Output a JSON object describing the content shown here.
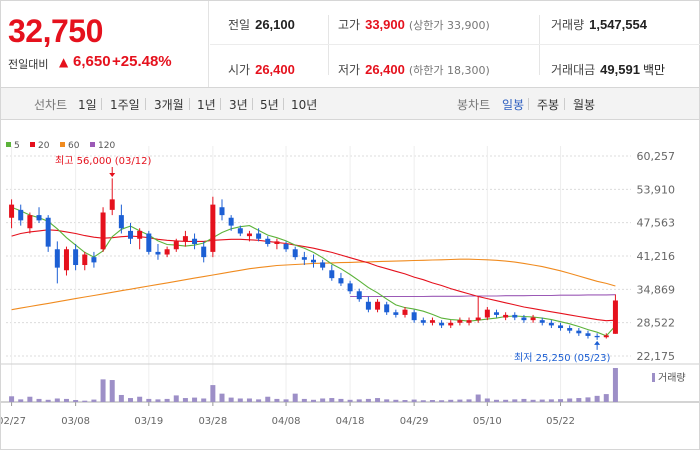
{
  "quote": {
    "price": "32,750",
    "change_label": "전일대비",
    "change_arrow": "▲",
    "change_value": "6,650",
    "change_rate": "+25.48%",
    "prev_close": {
      "label": "전일",
      "value": "26,100"
    },
    "open": {
      "label": "시가",
      "value": "26,400"
    },
    "high": {
      "label": "고가",
      "value": "33,900",
      "sub": "(상한가 33,900)"
    },
    "low": {
      "label": "저가",
      "value": "26,400",
      "sub": "(하한가 18,300)"
    },
    "volume": {
      "label": "거래량",
      "value": "1,547,554"
    },
    "trade_amount": {
      "label": "거래대금",
      "value": "49,591",
      "unit": "백만"
    }
  },
  "toolbar": {
    "line_label": "선차트",
    "line_periods": [
      "1일",
      "1주일",
      "3개월",
      "1년",
      "3년",
      "5년",
      "10년"
    ],
    "candle_label": "봉차트",
    "candle_periods": [
      "일봉",
      "주봉",
      "월봉"
    ],
    "active_candle": "일봉"
  },
  "colors": {
    "up": "#e5111d",
    "down": "#1c5fd4",
    "ma5": "#5cb33a",
    "ma20": "#e5111d",
    "ma60": "#f08b1f",
    "ma120": "#9b59b6",
    "volume": "#9d8fc7",
    "grid": "#dcdcdc"
  },
  "chart_data": {
    "type": "candlestick",
    "legend": [
      {
        "name": "5",
        "color": "#5cb33a"
      },
      {
        "name": "20",
        "color": "#e5111d"
      },
      {
        "name": "60",
        "color": "#f08b1f"
      },
      {
        "name": "120",
        "color": "#9b59b6"
      }
    ],
    "y_ticks": [
      "60,257",
      "53,910",
      "47,563",
      "41,216",
      "34,869",
      "28,522",
      "22,175"
    ],
    "ylim": [
      22175,
      60257
    ],
    "x_ticks": [
      "02/27",
      "03/08",
      "03/19",
      "03/28",
      "04/08",
      "04/18",
      "04/29",
      "05/10",
      "05/22"
    ],
    "high_annotation": "최고 56,000 (03/12)",
    "low_annotation": "최저 25,250 (05/23)",
    "volume_label": "거래량",
    "candles": [
      {
        "o": 48500,
        "h": 52000,
        "l": 46500,
        "c": 51000
      },
      {
        "o": 50000,
        "h": 51000,
        "l": 47000,
        "c": 48000
      },
      {
        "o": 46500,
        "h": 49500,
        "l": 45500,
        "c": 49000
      },
      {
        "o": 49000,
        "h": 50500,
        "l": 47500,
        "c": 48000
      },
      {
        "o": 48500,
        "h": 49000,
        "l": 42000,
        "c": 43000
      },
      {
        "o": 42500,
        "h": 44000,
        "l": 36000,
        "c": 39000
      },
      {
        "o": 38500,
        "h": 43000,
        "l": 37500,
        "c": 42500
      },
      {
        "o": 42500,
        "h": 43500,
        "l": 38500,
        "c": 39500
      },
      {
        "o": 39500,
        "h": 42000,
        "l": 38500,
        "c": 41500
      },
      {
        "o": 41000,
        "h": 42000,
        "l": 39000,
        "c": 40000
      },
      {
        "o": 42500,
        "h": 50500,
        "l": 42000,
        "c": 49500
      },
      {
        "o": 50000,
        "h": 56000,
        "l": 49000,
        "c": 52000
      },
      {
        "o": 49000,
        "h": 51000,
        "l": 45500,
        "c": 46500
      },
      {
        "o": 46000,
        "h": 47500,
        "l": 43500,
        "c": 44500
      },
      {
        "o": 44500,
        "h": 46500,
        "l": 42500,
        "c": 46000
      },
      {
        "o": 45500,
        "h": 46000,
        "l": 41500,
        "c": 42000
      },
      {
        "o": 42000,
        "h": 43500,
        "l": 40500,
        "c": 41500
      },
      {
        "o": 41500,
        "h": 43000,
        "l": 41000,
        "c": 42500
      },
      {
        "o": 42500,
        "h": 44500,
        "l": 42000,
        "c": 44000
      },
      {
        "o": 44000,
        "h": 46000,
        "l": 43000,
        "c": 45000
      },
      {
        "o": 44500,
        "h": 45500,
        "l": 42500,
        "c": 43500
      },
      {
        "o": 43000,
        "h": 44000,
        "l": 40000,
        "c": 41000
      },
      {
        "o": 42000,
        "h": 52500,
        "l": 41000,
        "c": 51000
      },
      {
        "o": 50500,
        "h": 52000,
        "l": 48000,
        "c": 49000
      },
      {
        "o": 48500,
        "h": 49000,
        "l": 46000,
        "c": 47000
      },
      {
        "o": 46500,
        "h": 47000,
        "l": 45000,
        "c": 45500
      },
      {
        "o": 45000,
        "h": 46000,
        "l": 44000,
        "c": 45500
      },
      {
        "o": 45500,
        "h": 46500,
        "l": 44000,
        "c": 44500
      },
      {
        "o": 44500,
        "h": 45000,
        "l": 43000,
        "c": 43500
      },
      {
        "o": 43500,
        "h": 44500,
        "l": 42500,
        "c": 44000
      },
      {
        "o": 43500,
        "h": 44000,
        "l": 42000,
        "c": 42500
      },
      {
        "o": 42500,
        "h": 43000,
        "l": 40500,
        "c": 41000
      },
      {
        "o": 41000,
        "h": 42000,
        "l": 39500,
        "c": 40500
      },
      {
        "o": 40500,
        "h": 41500,
        "l": 39000,
        "c": 40000
      },
      {
        "o": 40000,
        "h": 40500,
        "l": 38500,
        "c": 39000
      },
      {
        "o": 38500,
        "h": 39500,
        "l": 36500,
        "c": 37000
      },
      {
        "o": 37000,
        "h": 38000,
        "l": 35500,
        "c": 36000
      },
      {
        "o": 36000,
        "h": 36500,
        "l": 34000,
        "c": 34500
      },
      {
        "o": 34500,
        "h": 35000,
        "l": 32500,
        "c": 33000
      },
      {
        "o": 32500,
        "h": 33500,
        "l": 30500,
        "c": 31000
      },
      {
        "o": 31000,
        "h": 33000,
        "l": 30500,
        "c": 32500
      },
      {
        "o": 32000,
        "h": 32500,
        "l": 30000,
        "c": 30500
      },
      {
        "o": 30500,
        "h": 31000,
        "l": 29500,
        "c": 30000
      },
      {
        "o": 30000,
        "h": 31500,
        "l": 29500,
        "c": 31000
      },
      {
        "o": 30500,
        "h": 31000,
        "l": 28500,
        "c": 29000
      },
      {
        "o": 29000,
        "h": 29500,
        "l": 28000,
        "c": 28500
      },
      {
        "o": 28500,
        "h": 29500,
        "l": 28000,
        "c": 29000
      },
      {
        "o": 28500,
        "h": 29000,
        "l": 27500,
        "c": 28000
      },
      {
        "o": 28000,
        "h": 29000,
        "l": 27500,
        "c": 28500
      },
      {
        "o": 28500,
        "h": 29500,
        "l": 28000,
        "c": 29000
      },
      {
        "o": 28500,
        "h": 29500,
        "l": 28000,
        "c": 29000
      },
      {
        "o": 29000,
        "h": 33500,
        "l": 28500,
        "c": 29500
      },
      {
        "o": 29500,
        "h": 31500,
        "l": 29000,
        "c": 31000
      },
      {
        "o": 30500,
        "h": 31000,
        "l": 29500,
        "c": 30000
      },
      {
        "o": 29500,
        "h": 30500,
        "l": 29000,
        "c": 30000
      },
      {
        "o": 30000,
        "h": 30500,
        "l": 29000,
        "c": 29500
      },
      {
        "o": 29500,
        "h": 30000,
        "l": 28500,
        "c": 29000
      },
      {
        "o": 29000,
        "h": 30000,
        "l": 28500,
        "c": 29500
      },
      {
        "o": 29000,
        "h": 29500,
        "l": 28000,
        "c": 28500
      },
      {
        "o": 28500,
        "h": 29000,
        "l": 27500,
        "c": 28000
      },
      {
        "o": 28000,
        "h": 28500,
        "l": 27000,
        "c": 27500
      },
      {
        "o": 27500,
        "h": 28000,
        "l": 26500,
        "c": 27000
      },
      {
        "o": 27000,
        "h": 27500,
        "l": 26000,
        "c": 26500
      },
      {
        "o": 26500,
        "h": 27000,
        "l": 25500,
        "c": 26000
      },
      {
        "o": 26000,
        "h": 26500,
        "l": 25250,
        "c": 25750
      },
      {
        "o": 25750,
        "h": 26500,
        "l": 25500,
        "c": 26100
      },
      {
        "o": 26400,
        "h": 33900,
        "l": 26400,
        "c": 32750
      }
    ],
    "volumes": [
      260,
      120,
      240,
      140,
      100,
      160,
      140,
      90,
      60,
      110,
      1030,
      1000,
      320,
      180,
      240,
      140,
      120,
      140,
      300,
      180,
      200,
      160,
      770,
      380,
      200,
      160,
      160,
      120,
      240,
      140,
      120,
      380,
      140,
      100,
      160,
      180,
      140,
      100,
      120,
      140,
      180,
      120,
      100,
      90,
      110,
      80,
      90,
      80,
      100,
      110,
      120,
      340,
      160,
      100,
      100,
      120,
      140,
      100,
      110,
      120,
      130,
      160,
      180,
      210,
      280,
      360,
      1547.5
    ],
    "ma5": [
      50500,
      49800,
      49000,
      48500,
      47800,
      46400,
      44700,
      43300,
      41900,
      41000,
      42200,
      44900,
      46300,
      46900,
      46000,
      45200,
      44100,
      43400,
      43300,
      43100,
      43300,
      43700,
      44700,
      45700,
      46400,
      46800,
      47000,
      46100,
      45200,
      44700,
      44100,
      43300,
      42700,
      41900,
      40900,
      39700,
      38800,
      37700,
      36500,
      35200,
      34200,
      33000,
      31900,
      31400,
      31100,
      30700,
      30100,
      29400,
      29100,
      29000,
      28800,
      29000,
      29200,
      29400,
      29700,
      29800,
      29700,
      29600,
      29400,
      29100,
      28700,
      28300,
      27800,
      27200,
      26700,
      26000,
      27900
    ],
    "ma20": [
      45000,
      45500,
      45800,
      46000,
      46200,
      46100,
      45800,
      45500,
      45100,
      44800,
      44600,
      44700,
      44900,
      45000,
      44900,
      44700,
      44400,
      44200,
      44100,
      44000,
      44000,
      44000,
      44200,
      44300,
      44400,
      44400,
      44300,
      44200,
      44000,
      43800,
      43600,
      43300,
      43000,
      42700,
      42300,
      41900,
      41400,
      40900,
      40400,
      39900,
      39300,
      38800,
      38300,
      37800,
      37200,
      36700,
      36100,
      35600,
      35000,
      34500,
      34000,
      33500,
      33100,
      32700,
      32300,
      31900,
      31500,
      31200,
      30900,
      30600,
      30300,
      30000,
      29700,
      29400,
      29100,
      28900,
      29000
    ],
    "ma60": [
      31000,
      31300,
      31600,
      31900,
      32200,
      32500,
      32800,
      33100,
      33400,
      33700,
      34000,
      34300,
      34600,
      34900,
      35200,
      35500,
      35800,
      36100,
      36400,
      36700,
      37000,
      37300,
      37600,
      37900,
      38200,
      38500,
      38800,
      39000,
      39200,
      39400,
      39500,
      39600,
      39700,
      39800,
      39850,
      39900,
      39950,
      40000,
      40050,
      40100,
      40150,
      40200,
      40250,
      40300,
      40350,
      40400,
      40450,
      40500,
      40550,
      40600,
      40600,
      40550,
      40500,
      40400,
      40250,
      40050,
      39800,
      39500,
      39200,
      38800,
      38400,
      37900,
      37400,
      36900,
      36400,
      36000,
      35500
    ],
    "ma120": [
      null,
      null,
      null,
      null,
      null,
      null,
      null,
      null,
      null,
      null,
      null,
      null,
      null,
      null,
      null,
      null,
      null,
      null,
      null,
      null,
      null,
      null,
      null,
      null,
      null,
      null,
      null,
      null,
      null,
      null,
      null,
      null,
      null,
      null,
      null,
      null,
      null,
      33500,
      33500,
      33500,
      33500,
      33500,
      33500,
      33500,
      33500,
      33500,
      33550,
      33550,
      33550,
      33550,
      33600,
      33600,
      33600,
      33600,
      33650,
      33650,
      33650,
      33700,
      33700,
      33700,
      33750,
      33750,
      33750,
      33800,
      33800,
      33800,
      33850
    ]
  }
}
